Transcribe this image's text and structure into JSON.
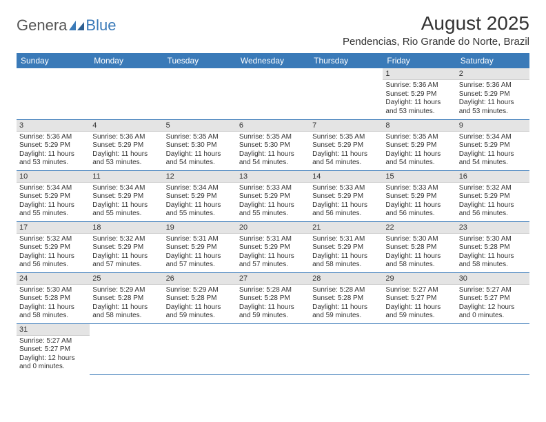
{
  "logo": {
    "part1": "Genera",
    "part2": "Blue"
  },
  "title": "August 2025",
  "location": "Pendencias, Rio Grande do Norte, Brazil",
  "colors": {
    "header_bg": "#3a7ab8",
    "header_fg": "#ffffff",
    "daynum_bg": "#e4e4e4",
    "rule": "#3a7ab8",
    "text": "#333333",
    "logo_gray": "#555555",
    "logo_blue": "#3a7ab8"
  },
  "weekdays": [
    "Sunday",
    "Monday",
    "Tuesday",
    "Wednesday",
    "Thursday",
    "Friday",
    "Saturday"
  ],
  "weeks": [
    [
      null,
      null,
      null,
      null,
      null,
      {
        "n": "1",
        "sr": "5:36 AM",
        "ss": "5:29 PM",
        "dl": "11 hours and 53 minutes."
      },
      {
        "n": "2",
        "sr": "5:36 AM",
        "ss": "5:29 PM",
        "dl": "11 hours and 53 minutes."
      }
    ],
    [
      {
        "n": "3",
        "sr": "5:36 AM",
        "ss": "5:29 PM",
        "dl": "11 hours and 53 minutes."
      },
      {
        "n": "4",
        "sr": "5:36 AM",
        "ss": "5:29 PM",
        "dl": "11 hours and 53 minutes."
      },
      {
        "n": "5",
        "sr": "5:35 AM",
        "ss": "5:30 PM",
        "dl": "11 hours and 54 minutes."
      },
      {
        "n": "6",
        "sr": "5:35 AM",
        "ss": "5:30 PM",
        "dl": "11 hours and 54 minutes."
      },
      {
        "n": "7",
        "sr": "5:35 AM",
        "ss": "5:29 PM",
        "dl": "11 hours and 54 minutes."
      },
      {
        "n": "8",
        "sr": "5:35 AM",
        "ss": "5:29 PM",
        "dl": "11 hours and 54 minutes."
      },
      {
        "n": "9",
        "sr": "5:34 AM",
        "ss": "5:29 PM",
        "dl": "11 hours and 54 minutes."
      }
    ],
    [
      {
        "n": "10",
        "sr": "5:34 AM",
        "ss": "5:29 PM",
        "dl": "11 hours and 55 minutes."
      },
      {
        "n": "11",
        "sr": "5:34 AM",
        "ss": "5:29 PM",
        "dl": "11 hours and 55 minutes."
      },
      {
        "n": "12",
        "sr": "5:34 AM",
        "ss": "5:29 PM",
        "dl": "11 hours and 55 minutes."
      },
      {
        "n": "13",
        "sr": "5:33 AM",
        "ss": "5:29 PM",
        "dl": "11 hours and 55 minutes."
      },
      {
        "n": "14",
        "sr": "5:33 AM",
        "ss": "5:29 PM",
        "dl": "11 hours and 56 minutes."
      },
      {
        "n": "15",
        "sr": "5:33 AM",
        "ss": "5:29 PM",
        "dl": "11 hours and 56 minutes."
      },
      {
        "n": "16",
        "sr": "5:32 AM",
        "ss": "5:29 PM",
        "dl": "11 hours and 56 minutes."
      }
    ],
    [
      {
        "n": "17",
        "sr": "5:32 AM",
        "ss": "5:29 PM",
        "dl": "11 hours and 56 minutes."
      },
      {
        "n": "18",
        "sr": "5:32 AM",
        "ss": "5:29 PM",
        "dl": "11 hours and 57 minutes."
      },
      {
        "n": "19",
        "sr": "5:31 AM",
        "ss": "5:29 PM",
        "dl": "11 hours and 57 minutes."
      },
      {
        "n": "20",
        "sr": "5:31 AM",
        "ss": "5:29 PM",
        "dl": "11 hours and 57 minutes."
      },
      {
        "n": "21",
        "sr": "5:31 AM",
        "ss": "5:29 PM",
        "dl": "11 hours and 58 minutes."
      },
      {
        "n": "22",
        "sr": "5:30 AM",
        "ss": "5:28 PM",
        "dl": "11 hours and 58 minutes."
      },
      {
        "n": "23",
        "sr": "5:30 AM",
        "ss": "5:28 PM",
        "dl": "11 hours and 58 minutes."
      }
    ],
    [
      {
        "n": "24",
        "sr": "5:30 AM",
        "ss": "5:28 PM",
        "dl": "11 hours and 58 minutes."
      },
      {
        "n": "25",
        "sr": "5:29 AM",
        "ss": "5:28 PM",
        "dl": "11 hours and 58 minutes."
      },
      {
        "n": "26",
        "sr": "5:29 AM",
        "ss": "5:28 PM",
        "dl": "11 hours and 59 minutes."
      },
      {
        "n": "27",
        "sr": "5:28 AM",
        "ss": "5:28 PM",
        "dl": "11 hours and 59 minutes."
      },
      {
        "n": "28",
        "sr": "5:28 AM",
        "ss": "5:28 PM",
        "dl": "11 hours and 59 minutes."
      },
      {
        "n": "29",
        "sr": "5:27 AM",
        "ss": "5:27 PM",
        "dl": "11 hours and 59 minutes."
      },
      {
        "n": "30",
        "sr": "5:27 AM",
        "ss": "5:27 PM",
        "dl": "12 hours and 0 minutes."
      }
    ],
    [
      {
        "n": "31",
        "sr": "5:27 AM",
        "ss": "5:27 PM",
        "dl": "12 hours and 0 minutes."
      },
      null,
      null,
      null,
      null,
      null,
      null
    ]
  ],
  "labels": {
    "sunrise": "Sunrise:",
    "sunset": "Sunset:",
    "daylight": "Daylight:"
  }
}
